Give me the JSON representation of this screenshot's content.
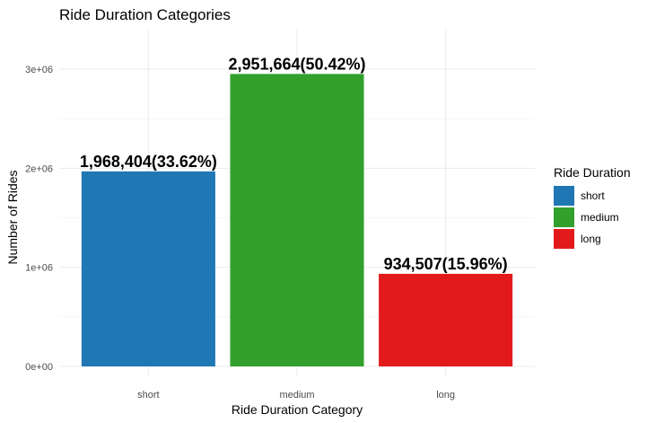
{
  "chart_data": {
    "type": "bar",
    "title": "Ride Duration Categories",
    "xlabel": "Ride Duration Category",
    "ylabel": "Number of Rides",
    "categories": [
      "short",
      "medium",
      "long"
    ],
    "values": [
      1968404,
      2951664,
      934507
    ],
    "data_labels": [
      "1,968,404(33.62%)",
      "2,951,664(50.42%)",
      "934,507(15.96%)"
    ],
    "colors": [
      "#1f78b4",
      "#33a02c",
      "#e31a1c"
    ],
    "ylim": [
      0,
      3300000
    ],
    "yticks": [
      0,
      1000000,
      2000000,
      3000000
    ],
    "ytick_labels": [
      "0e+00",
      "1e+06",
      "2e+06",
      "3e+06"
    ],
    "grid": true,
    "legend": {
      "title": "Ride Duration",
      "placement": "right",
      "entries": [
        "short",
        "medium",
        "long"
      ]
    }
  }
}
